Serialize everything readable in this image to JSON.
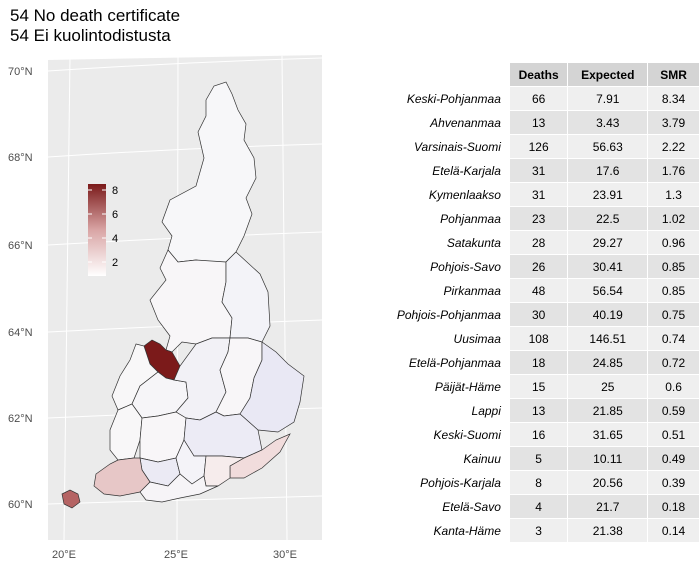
{
  "title_line1": "54 No death certificate",
  "title_line2": "54 Ei kuolintodistusta",
  "chart_data": [
    {
      "type": "map",
      "lat_ticks": [
        "60°N",
        "62°N",
        "64°N",
        "66°N",
        "68°N",
        "70°N"
      ],
      "lon_ticks": [
        "20°E",
        "25°E",
        "30°E"
      ],
      "legend": {
        "ticks": [
          "2",
          "4",
          "6",
          "8"
        ],
        "low_color": "#ffffff",
        "high_color": "#7b1a1a",
        "placement": "left-inside"
      },
      "fill_variable": "SMR"
    },
    {
      "type": "table",
      "columns": [
        "Deaths",
        "Expected",
        "SMR"
      ],
      "rows": [
        {
          "region": "Keski-Pohjanmaa",
          "deaths": "66",
          "expected": "7.91",
          "smr": "8.34"
        },
        {
          "region": "Ahvenanmaa",
          "deaths": "13",
          "expected": "3.43",
          "smr": "3.79"
        },
        {
          "region": "Varsinais-Suomi",
          "deaths": "126",
          "expected": "56.63",
          "smr": "2.22"
        },
        {
          "region": "Etelä-Karjala",
          "deaths": "31",
          "expected": "17.6",
          "smr": "1.76"
        },
        {
          "region": "Kymenlaakso",
          "deaths": "31",
          "expected": "23.91",
          "smr": "1.3"
        },
        {
          "region": "Pohjanmaa",
          "deaths": "23",
          "expected": "22.5",
          "smr": "1.02"
        },
        {
          "region": "Satakunta",
          "deaths": "28",
          "expected": "29.27",
          "smr": "0.96"
        },
        {
          "region": "Pohjois-Savo",
          "deaths": "26",
          "expected": "30.41",
          "smr": "0.85"
        },
        {
          "region": "Pirkanmaa",
          "deaths": "48",
          "expected": "56.54",
          "smr": "0.85"
        },
        {
          "region": "Pohjois-Pohjanmaa",
          "deaths": "30",
          "expected": "40.19",
          "smr": "0.75"
        },
        {
          "region": "Uusimaa",
          "deaths": "108",
          "expected": "146.51",
          "smr": "0.74"
        },
        {
          "region": "Etelä-Pohjanmaa",
          "deaths": "18",
          "expected": "24.85",
          "smr": "0.72"
        },
        {
          "region": "Päijät-Häme",
          "deaths": "15",
          "expected": "25",
          "smr": "0.6"
        },
        {
          "region": "Lappi",
          "deaths": "13",
          "expected": "21.85",
          "smr": "0.59"
        },
        {
          "region": "Keski-Suomi",
          "deaths": "16",
          "expected": "31.65",
          "smr": "0.51"
        },
        {
          "region": "Kainuu",
          "deaths": "5",
          "expected": "10.11",
          "smr": "0.49"
        },
        {
          "region": "Pohjois-Karjala",
          "deaths": "8",
          "expected": "20.56",
          "smr": "0.39"
        },
        {
          "region": "Etelä-Savo",
          "deaths": "4",
          "expected": "21.7",
          "smr": "0.18"
        },
        {
          "region": "Kanta-Häme",
          "deaths": "3",
          "expected": "21.38",
          "smr": "0.14"
        }
      ]
    }
  ]
}
